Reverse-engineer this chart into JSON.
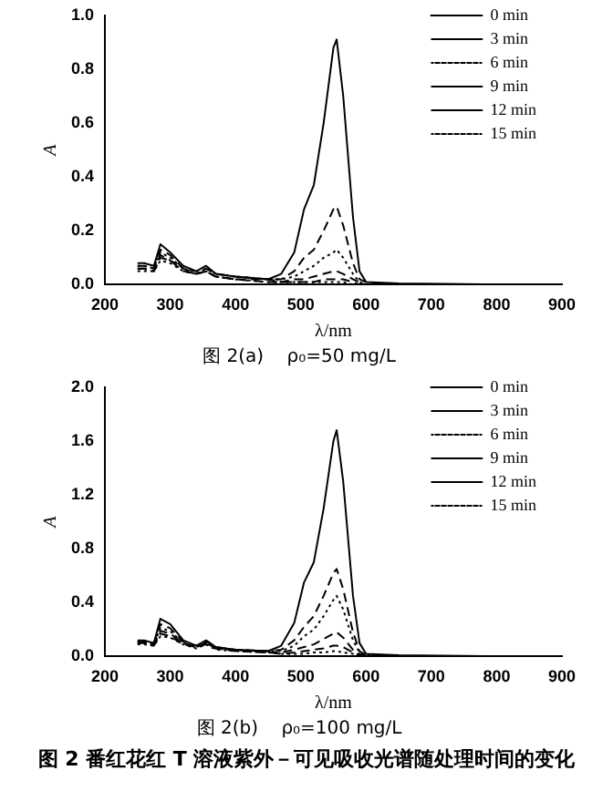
{
  "chart_data": [
    {
      "type": "line",
      "title": "图 2(a)    ρ₀=50 mg/L",
      "xlabel": "λ/nm",
      "ylabel": "A",
      "x": [
        250,
        260,
        275,
        285,
        300,
        320,
        340,
        355,
        370,
        400,
        450,
        470,
        490,
        505,
        520,
        535,
        550,
        555,
        565,
        580,
        590,
        600,
        650,
        850
      ],
      "xlim": [
        200,
        900
      ],
      "xticks": [
        200,
        300,
        400,
        500,
        600,
        700,
        800,
        900
      ],
      "ylim": [
        0,
        1
      ],
      "yticks": [
        {
          "value": 0,
          "label": "0.0"
        },
        0.2,
        0.4,
        0.6,
        0.8,
        {
          "value": 1,
          "label": "1.0"
        }
      ],
      "grid": false,
      "legend": "top right",
      "marker": "none",
      "series": [
        {
          "name": "0 min",
          "color": "#000000",
          "line_style": "solid",
          "values": [
            0.08,
            0.08,
            0.07,
            0.15,
            0.12,
            0.07,
            0.05,
            0.07,
            0.04,
            0.03,
            0.02,
            0.04,
            0.12,
            0.28,
            0.37,
            0.6,
            0.88,
            0.91,
            0.7,
            0.25,
            0.05,
            0.01,
            0.005,
            0
          ]
        },
        {
          "name": "3 min",
          "color": "#000000",
          "line_style": "dashed",
          "values": [
            0.07,
            0.07,
            0.06,
            0.13,
            0.11,
            0.06,
            0.05,
            0.06,
            0.04,
            0.03,
            0.02,
            0.02,
            0.05,
            0.1,
            0.13,
            0.2,
            0.28,
            0.29,
            0.22,
            0.08,
            0.02,
            0.01,
            0,
            0
          ]
        },
        {
          "name": "6 min",
          "color": "#000000",
          "line_style": "dotted",
          "values": [
            0.07,
            0.07,
            0.06,
            0.12,
            0.1,
            0.06,
            0.04,
            0.06,
            0.04,
            0.03,
            0.02,
            0.02,
            0.03,
            0.05,
            0.07,
            0.1,
            0.12,
            0.13,
            0.1,
            0.04,
            0.01,
            0,
            0,
            0
          ]
        },
        {
          "name": "9 min",
          "color": "#000000",
          "line_style": "dashed",
          "values": [
            0.06,
            0.06,
            0.05,
            0.11,
            0.09,
            0.06,
            0.04,
            0.05,
            0.03,
            0.02,
            0.02,
            0.01,
            0.02,
            0.02,
            0.03,
            0.04,
            0.05,
            0.05,
            0.04,
            0.02,
            0.01,
            0,
            0,
            0
          ]
        },
        {
          "name": "12 min",
          "color": "#000000",
          "line_style": "dashed",
          "values": [
            0.06,
            0.06,
            0.05,
            0.1,
            0.09,
            0.05,
            0.04,
            0.05,
            0.03,
            0.02,
            0.01,
            0.01,
            0.01,
            0.01,
            0.01,
            0.02,
            0.02,
            0.02,
            0.02,
            0.01,
            0,
            0,
            0,
            0
          ]
        },
        {
          "name": "15 min",
          "color": "#000000",
          "line_style": "dotted",
          "values": [
            0.05,
            0.05,
            0.05,
            0.09,
            0.08,
            0.05,
            0.04,
            0.05,
            0.03,
            0.02,
            0.01,
            0.01,
            0.01,
            0.01,
            0.01,
            0.01,
            0.01,
            0.01,
            0.01,
            0,
            0,
            0,
            0,
            0
          ]
        }
      ]
    },
    {
      "type": "line",
      "title": "图 2(b)    ρ₀=100 mg/L",
      "xlabel": "λ/nm",
      "ylabel": "A",
      "annotations": [
        "图 2    番红花红 T 溶液紫外－可见吸收光谱随处理时间的变化"
      ],
      "x": [
        250,
        260,
        275,
        285,
        300,
        320,
        340,
        355,
        370,
        400,
        450,
        470,
        490,
        505,
        520,
        535,
        550,
        555,
        565,
        580,
        590,
        600,
        650,
        850
      ],
      "xlim": [
        200,
        900
      ],
      "xticks": [
        200,
        300,
        400,
        500,
        600,
        700,
        800,
        900
      ],
      "ylim": [
        0,
        2
      ],
      "yticks": [
        {
          "value": 0,
          "label": "0.0"
        },
        0.4,
        0.8,
        1.2,
        1.6,
        {
          "value": 2,
          "label": "2.0"
        }
      ],
      "grid": false,
      "legend": "top right",
      "marker": "none",
      "series": [
        {
          "name": "0 min",
          "color": "#000000",
          "line_style": "solid",
          "values": [
            0.12,
            0.12,
            0.1,
            0.28,
            0.24,
            0.12,
            0.08,
            0.12,
            0.07,
            0.05,
            0.04,
            0.08,
            0.25,
            0.55,
            0.7,
            1.1,
            1.6,
            1.68,
            1.3,
            0.45,
            0.1,
            0.02,
            0.01,
            0
          ]
        },
        {
          "name": "3 min",
          "color": "#000000",
          "line_style": "dashed",
          "values": [
            0.11,
            0.11,
            0.1,
            0.24,
            0.21,
            0.11,
            0.08,
            0.11,
            0.07,
            0.05,
            0.04,
            0.05,
            0.12,
            0.22,
            0.3,
            0.45,
            0.62,
            0.65,
            0.5,
            0.18,
            0.04,
            0.01,
            0,
            0
          ]
        },
        {
          "name": "6 min",
          "color": "#000000",
          "line_style": "dotted",
          "values": [
            0.11,
            0.11,
            0.09,
            0.21,
            0.19,
            0.1,
            0.07,
            0.1,
            0.06,
            0.05,
            0.04,
            0.04,
            0.08,
            0.15,
            0.2,
            0.3,
            0.42,
            0.45,
            0.35,
            0.12,
            0.03,
            0.01,
            0,
            0
          ]
        },
        {
          "name": "9 min",
          "color": "#000000",
          "line_style": "dashed",
          "values": [
            0.1,
            0.1,
            0.09,
            0.19,
            0.17,
            0.1,
            0.07,
            0.1,
            0.06,
            0.05,
            0.03,
            0.03,
            0.05,
            0.07,
            0.09,
            0.13,
            0.17,
            0.18,
            0.14,
            0.05,
            0.02,
            0,
            0,
            0
          ]
        },
        {
          "name": "12 min",
          "color": "#000000",
          "line_style": "dashed",
          "values": [
            0.1,
            0.1,
            0.08,
            0.17,
            0.15,
            0.09,
            0.07,
            0.09,
            0.06,
            0.04,
            0.03,
            0.02,
            0.03,
            0.04,
            0.05,
            0.06,
            0.08,
            0.08,
            0.07,
            0.03,
            0.01,
            0,
            0,
            0
          ]
        },
        {
          "name": "15 min",
          "color": "#000000",
          "line_style": "dotted",
          "values": [
            0.09,
            0.09,
            0.08,
            0.15,
            0.14,
            0.09,
            0.06,
            0.09,
            0.05,
            0.04,
            0.03,
            0.02,
            0.02,
            0.02,
            0.03,
            0.03,
            0.04,
            0.04,
            0.03,
            0.02,
            0.01,
            0,
            0,
            0
          ]
        }
      ]
    }
  ]
}
